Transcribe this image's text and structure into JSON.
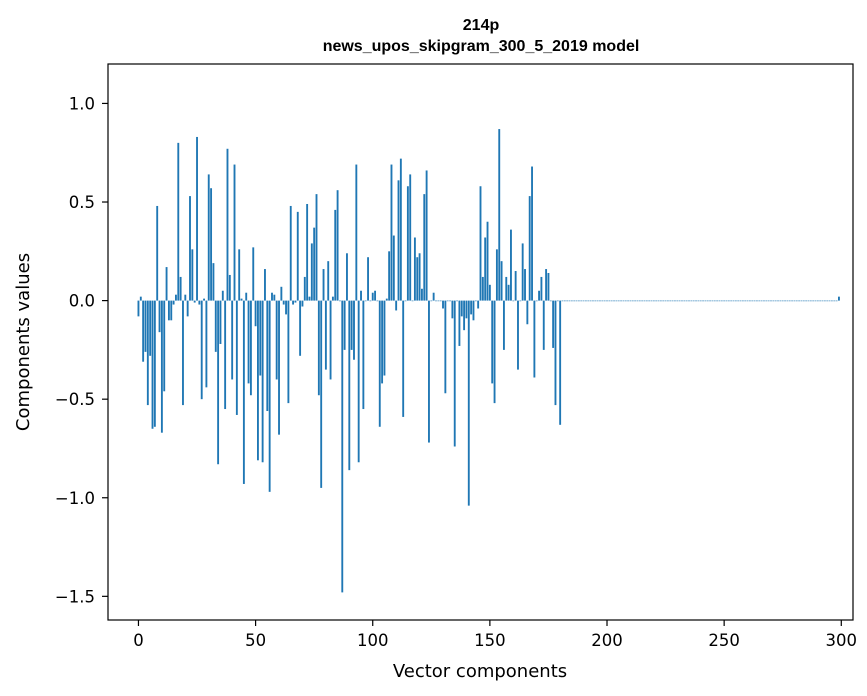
{
  "chart_data": {
    "type": "bar",
    "title": "214p",
    "subtitle": "news_upos_skipgram_300_5_2019 model",
    "xlabel": "Vector components",
    "ylabel": "Components values",
    "xlim": [
      -13,
      305
    ],
    "ylim": [
      -1.62,
      1.2
    ],
    "xticks": [
      0,
      50,
      100,
      150,
      200,
      250,
      300
    ],
    "yticks": [
      -1.5,
      -1.0,
      -0.5,
      0.0,
      0.5,
      1.0
    ],
    "ytick_labels": [
      "−1.5",
      "−1.0",
      "−0.5",
      "0.0",
      "0.5",
      "1.0"
    ],
    "bar_color": "#1f77b4",
    "grid": false,
    "legend": "none",
    "values": [
      -0.08,
      0.02,
      -0.31,
      -0.26,
      -0.53,
      -0.28,
      -0.65,
      -0.64,
      0.48,
      -0.16,
      -0.67,
      -0.46,
      0.17,
      -0.1,
      -0.1,
      -0.02,
      0.03,
      0.8,
      0.12,
      -0.53,
      0.03,
      -0.08,
      0.53,
      0.26,
      -0.01,
      0.83,
      -0.02,
      -0.5,
      0.01,
      -0.44,
      0.64,
      0.57,
      0.19,
      -0.26,
      -0.83,
      -0.22,
      0.05,
      -0.55,
      0.77,
      0.13,
      -0.4,
      0.69,
      -0.58,
      0.26,
      0.01,
      -0.93,
      0.04,
      -0.42,
      -0.48,
      0.27,
      -0.13,
      -0.81,
      -0.38,
      -0.82,
      0.16,
      -0.56,
      -0.97,
      0.04,
      0.03,
      -0.4,
      -0.68,
      0.07,
      -0.02,
      -0.07,
      -0.52,
      0.48,
      -0.02,
      -0.01,
      0.45,
      -0.28,
      -0.03,
      0.12,
      0.49,
      0.02,
      0.29,
      0.37,
      0.54,
      -0.48,
      -0.95,
      0.16,
      -0.35,
      0.2,
      -0.4,
      0.02,
      0.46,
      0.56,
      0.0,
      -1.48,
      -0.25,
      0.24,
      -0.86,
      -0.25,
      -0.3,
      0.69,
      -0.82,
      0.05,
      -0.55,
      0.0,
      0.22,
      0.0,
      0.04,
      0.05,
      0.0,
      -0.64,
      -0.42,
      -0.38,
      0.01,
      0.25,
      0.69,
      0.33,
      -0.05,
      0.61,
      0.72,
      -0.59,
      0.0,
      0.58,
      0.64,
      0.0,
      0.32,
      0.22,
      0.24,
      0.06,
      0.54,
      0.66,
      -0.72,
      0.0,
      0.04,
      0.0,
      0.0,
      0.0,
      -0.04,
      -0.47,
      0.0,
      0.0,
      -0.09,
      -0.74,
      0.0,
      -0.23,
      -0.08,
      -0.15,
      -0.09,
      -1.04,
      -0.07,
      -0.1,
      0.0,
      -0.04,
      0.58,
      0.12,
      0.32,
      0.4,
      0.08,
      -0.42,
      -0.52,
      0.26,
      0.87,
      0.2,
      -0.25,
      0.12,
      0.08,
      0.36,
      0.0,
      0.15,
      -0.35,
      0.0,
      0.29,
      0.16,
      -0.12,
      0.53,
      0.68,
      -0.39,
      0.0,
      0.05,
      0.12,
      -0.25,
      0.16,
      0.14,
      0.0,
      -0.24,
      -0.53,
      0.0,
      -0.63,
      0.0,
      0.0,
      0.0,
      0.0,
      0.0,
      0.0,
      0.0,
      0.0,
      0.0,
      0.0,
      0.0,
      0.0,
      0.0,
      0.0,
      0.0,
      0.0,
      0.0,
      0.0,
      0.0,
      0.0,
      0.0,
      0.0,
      0.0,
      0.0,
      0.0,
      0.0,
      0.0,
      0.0,
      0.0,
      0.0,
      0.0,
      0.0,
      0.0,
      0.0,
      0.0,
      0.0,
      0.0,
      0.0,
      0.0,
      0.0,
      0.0,
      0.0,
      0.0,
      0.0,
      0.0,
      0.0,
      0.0,
      0.0,
      0.0,
      0.0,
      0.0,
      0.0,
      0.0,
      0.0,
      0.0,
      0.0,
      0.0,
      0.0,
      0.0,
      0.0,
      0.0,
      0.0,
      0.0,
      0.0,
      0.0,
      0.0,
      0.0,
      0.0,
      0.0,
      0.0,
      0.0,
      0.0,
      0.0,
      0.0,
      0.0,
      0.0,
      0.0,
      0.0,
      0.0,
      0.0,
      0.0,
      0.0,
      0.0,
      0.0,
      0.0,
      0.0,
      0.0,
      0.0,
      0.0,
      0.0,
      0.0,
      0.0,
      0.0,
      0.0,
      0.0,
      0.0,
      0.0,
      0.0,
      0.0,
      0.0,
      0.0,
      0.0,
      0.0,
      0.0,
      0.0,
      0.0,
      0.0,
      0.0,
      0.0,
      0.0,
      0.0,
      0.0,
      0.0,
      0.0,
      0.0,
      0.0,
      0.0,
      0.0,
      0.02
    ]
  }
}
